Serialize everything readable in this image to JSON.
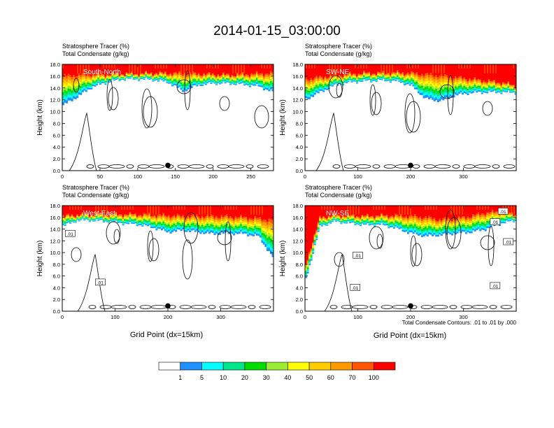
{
  "figure": {
    "title": "2014-01-15_03:00:00",
    "shared_xlabel": "Grid Point (dx=15km)",
    "contour_note": "Total Condensate Contours: .01 to .01 by .000"
  },
  "colorbar": {
    "labels": [
      "1",
      "5",
      "10",
      "20",
      "30",
      "40",
      "50",
      "60",
      "70",
      "100"
    ],
    "colors": [
      "#ffffff",
      "#1e90ff",
      "#00ffff",
      "#00e68a",
      "#00dd00",
      "#99ee33",
      "#ffff00",
      "#ffcc00",
      "#ff9900",
      "#ff5500",
      "#ff0000"
    ]
  },
  "chart_data": [
    {
      "type": "heatmap",
      "label": "South-North",
      "subtitle1": "Stratosphere Tracer   (%)",
      "subtitle2": "Total Condensate   (g/kg)",
      "ylabel": "Height (km)",
      "xlabel": "",
      "xlim": [
        0,
        280
      ],
      "ylim": [
        0,
        18
      ],
      "xticks": [
        "0",
        "50",
        "100",
        "150",
        "200",
        "250"
      ],
      "xtick_values": [
        0,
        50,
        100,
        150,
        200,
        250
      ],
      "yticks": [
        "0.0",
        "2.0",
        "4.0",
        "6.0",
        "8.0",
        "10.0",
        "12.0",
        "14.0",
        "16.0",
        "18.0"
      ],
      "marker_x": 140,
      "contour_labels": [],
      "red_base": [
        16,
        16.2,
        16.3,
        16.3,
        16.4,
        16.4,
        16.5,
        16.5,
        16.5,
        16.4,
        16.3,
        16.2,
        16.3,
        16.4,
        16.5
      ],
      "band_base": [
        11,
        12.5,
        14.2,
        15,
        15.5,
        15.5,
        15.4,
        15,
        13.5,
        14.5,
        14.8,
        14.8,
        14.6,
        14.3,
        13.3
      ]
    },
    {
      "type": "heatmap",
      "label": "SW-NE",
      "subtitle1": "Stratosphere Tracer   (%)",
      "subtitle2": "Total Condensate   (g/kg)",
      "ylabel": "Height (km)",
      "xlabel": "",
      "xlim": [
        0,
        400
      ],
      "ylim": [
        0,
        18
      ],
      "xticks": [
        "0",
        "100",
        "200",
        "300"
      ],
      "xtick_values": [
        0,
        100,
        200,
        300
      ],
      "yticks": [
        "0.0",
        "2.0",
        "4.0",
        "6.0",
        "8.0",
        "10.0",
        "12.0",
        "14.0",
        "16.0",
        "18.0"
      ],
      "marker_x": 200,
      "contour_labels": [],
      "red_base": [
        15.5,
        15.8,
        16.1,
        16.3,
        16.5,
        16.5,
        16.6,
        16.5,
        16.3,
        16.1,
        15.8,
        15.5,
        15.2,
        14.9,
        14.4
      ],
      "band_base": [
        12,
        13.3,
        14.5,
        15,
        15.2,
        15.3,
        15.2,
        14.5,
        12.2,
        11.8,
        12.8,
        13.2,
        13.3,
        13.3,
        13.2
      ]
    },
    {
      "type": "heatmap",
      "label": "West-East",
      "subtitle1": "Stratosphere Tracer   (%)",
      "subtitle2": "Total Condensate   (g/kg)",
      "ylabel": "Height (km)",
      "xlabel": "Grid Point (dx=15km)",
      "xlim": [
        0,
        400
      ],
      "ylim": [
        0,
        18
      ],
      "xticks": [
        "0",
        "100",
        "200",
        "300"
      ],
      "xtick_values": [
        0,
        100,
        200,
        300
      ],
      "yticks": [
        "0.0",
        "2.0",
        "4.0",
        "6.0",
        "8.0",
        "10.0",
        "12.0",
        "14.0",
        "16.0",
        "18.0"
      ],
      "marker_x": 200,
      "contour_labels": [
        {
          "x": 15,
          "y": 13.2,
          "text": ".01"
        },
        {
          "x": 72,
          "y": 4.9,
          "text": ".01"
        }
      ],
      "red_base": [
        16.2,
        16.4,
        16.5,
        16.5,
        16.5,
        16.5,
        16.4,
        16.3,
        16.2,
        16.2,
        16.2,
        16.1,
        16.0,
        15.8,
        15.5
      ],
      "band_base": [
        14.5,
        15.5,
        15.5,
        15.3,
        15.0,
        14.8,
        14.3,
        13.5,
        13.8,
        13.5,
        13.2,
        13.3,
        13.2,
        12.8,
        9
      ]
    },
    {
      "type": "heatmap",
      "label": "NW-SE",
      "subtitle1": "Stratosphere Tracer   (%)",
      "subtitle2": "Total Condensate   (g/kg)",
      "ylabel": "Height (km)",
      "xlabel": "",
      "xlim": [
        0,
        400
      ],
      "ylim": [
        0,
        18
      ],
      "xticks": [
        "0",
        "100",
        "200",
        "300"
      ],
      "xtick_values": [
        0,
        100,
        200,
        300
      ],
      "yticks": [
        "0.0",
        "2.0",
        "4.0",
        "6.0",
        "8.0",
        "10.0",
        "12.0",
        "14.0",
        "16.0",
        "18.0"
      ],
      "marker_x": 200,
      "contour_labels": [
        {
          "x": 375,
          "y": 17.0,
          "text": ".01"
        },
        {
          "x": 360,
          "y": 15.2,
          "text": ".01"
        },
        {
          "x": 385,
          "y": 11.8,
          "text": ".01"
        },
        {
          "x": 100,
          "y": 9.5,
          "text": ".01"
        },
        {
          "x": 95,
          "y": 4.0,
          "text": ".01"
        },
        {
          "x": 360,
          "y": 4.3,
          "text": ".01"
        }
      ],
      "red_base": [
        7.5,
        16.0,
        16.3,
        16.3,
        16.2,
        16.3,
        16.3,
        16.2,
        16.0,
        15.6,
        15.8,
        16.2,
        16.8,
        17.0,
        16.5
      ],
      "band_base": [
        5,
        14.5,
        15.3,
        15.0,
        14.7,
        14.8,
        14.2,
        13.3,
        12.8,
        13.0,
        13.3,
        13.5,
        14.0,
        15.0,
        15.5
      ]
    }
  ]
}
